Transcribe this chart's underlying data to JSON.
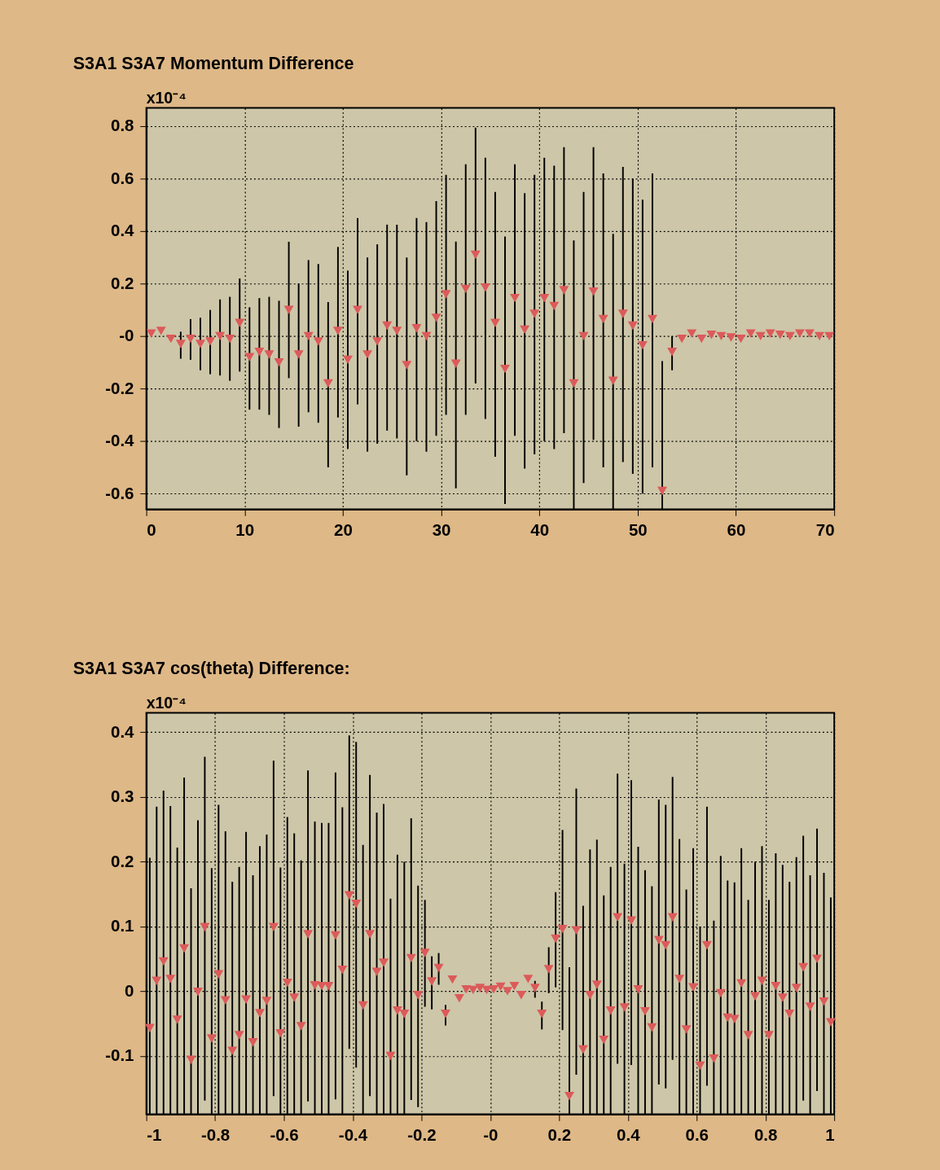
{
  "chart_data": [
    {
      "type": "scatter",
      "title": "S3A1 S3A7 Momentum Difference",
      "annotations": [
        "x10⁻⁴"
      ],
      "marker": "triangle",
      "grid": true,
      "color": "#dc5a5a",
      "x": [
        0.5,
        1.5,
        2.5,
        3.5,
        4.5,
        5.5,
        6.5,
        7.5,
        8.5,
        9.5,
        10.5,
        11.5,
        12.5,
        13.5,
        14.5,
        15.5,
        16.5,
        17.5,
        18.5,
        19.5,
        20.5,
        21.5,
        22.5,
        23.5,
        24.5,
        25.5,
        26.5,
        27.5,
        28.5,
        29.5,
        30.5,
        31.5,
        32.5,
        33.5,
        34.5,
        35.5,
        36.5,
        37.5,
        38.5,
        39.5,
        40.5,
        41.5,
        42.5,
        43.5,
        44.5,
        45.5,
        46.5,
        47.5,
        48.5,
        49.5,
        50.5,
        51.5,
        52.5,
        53.5,
        54.5,
        55.5,
        56.5,
        57.5,
        58.5,
        59.5,
        60.5,
        61.5,
        62.5,
        63.5,
        64.5,
        65.5,
        66.5,
        67.5,
        68.5,
        69.5
      ],
      "values": [
        0.01,
        0.02,
        -0.01,
        -0.03,
        -0.01,
        -0.03,
        -0.02,
        0.0,
        -0.01,
        0.05,
        -0.08,
        -0.06,
        -0.07,
        -0.1,
        0.1,
        -0.07,
        0.0,
        -0.02,
        -0.18,
        0.02,
        -0.09,
        0.1,
        -0.07,
        -0.02,
        0.04,
        0.02,
        -0.11,
        0.03,
        0.0,
        0.07,
        0.16,
        -0.105,
        0.18,
        0.31,
        0.185,
        0.05,
        -0.125,
        0.145,
        0.025,
        0.085,
        0.145,
        0.115,
        0.175,
        -0.18,
        0.0,
        0.17,
        0.065,
        -0.17,
        0.085,
        0.04,
        -0.035,
        0.065,
        -0.59,
        -0.06,
        -0.01,
        0.01,
        -0.01,
        0.005,
        0.0,
        -0.005,
        -0.01,
        0.01,
        0.0,
        0.01,
        0.005,
        0.0,
        0.01,
        0.01,
        0.0,
        0.0
      ],
      "errors": [
        null,
        null,
        null,
        [
          -0.086,
          0.017
        ],
        [
          -0.09,
          0.065
        ],
        [
          -0.13,
          0.07
        ],
        [
          -0.145,
          0.1
        ],
        [
          -0.15,
          0.14
        ],
        [
          -0.17,
          0.15
        ],
        [
          -0.135,
          0.22
        ],
        [
          -0.28,
          0.11
        ],
        [
          -0.28,
          0.145
        ],
        [
          -0.3,
          0.15
        ],
        [
          -0.35,
          0.135
        ],
        [
          -0.16,
          0.36
        ],
        [
          -0.345,
          0.2
        ],
        [
          -0.29,
          0.29
        ],
        [
          -0.33,
          0.275
        ],
        [
          -0.5,
          0.13
        ],
        [
          -0.31,
          0.34
        ],
        [
          -0.43,
          0.25
        ],
        [
          -0.26,
          0.45
        ],
        [
          -0.44,
          0.3
        ],
        [
          -0.41,
          0.35
        ],
        [
          -0.36,
          0.425
        ],
        [
          -0.39,
          0.425
        ],
        [
          -0.53,
          0.3
        ],
        [
          -0.4,
          0.45
        ],
        [
          -0.44,
          0.435
        ],
        [
          -0.38,
          0.515
        ],
        [
          -0.3,
          0.615
        ],
        [
          -0.58,
          0.36
        ],
        [
          -0.3,
          0.655
        ],
        [
          -0.18,
          0.795
        ],
        [
          -0.315,
          0.68
        ],
        [
          -0.46,
          0.55
        ],
        [
          -0.64,
          0.38
        ],
        [
          -0.38,
          0.655
        ],
        [
          -0.505,
          0.545
        ],
        [
          -0.45,
          0.615
        ],
        [
          -0.4,
          0.68
        ],
        [
          -0.43,
          0.65
        ],
        [
          -0.37,
          0.72
        ],
        [
          -0.66,
          0.365
        ],
        [
          -0.56,
          0.55
        ],
        [
          -0.395,
          0.72
        ],
        [
          -0.5,
          0.62
        ],
        [
          -0.66,
          0.39
        ],
        [
          -0.48,
          0.645
        ],
        [
          -0.525,
          0.6
        ],
        [
          -0.6,
          0.52
        ],
        [
          -0.5,
          0.62
        ],
        [
          -0.66,
          -0.095
        ],
        [
          -0.13,
          0.0
        ],
        null,
        null,
        null,
        null,
        null,
        null,
        null,
        null,
        null,
        null,
        null,
        null,
        null,
        null,
        null,
        null
      ],
      "xlim": [
        0,
        70
      ],
      "xticks": [
        0,
        10,
        20,
        30,
        40,
        50,
        60,
        70
      ],
      "ylim": [
        -0.66,
        0.87
      ],
      "yticks": [
        -0.6,
        -0.4,
        -0.2,
        {
          "value": 0,
          "label": "-0"
        },
        0.2,
        0.4,
        0.6,
        0.8
      ]
    },
    {
      "type": "scatter",
      "title": "S3A1 S3A7 cos(theta) Difference:",
      "annotations": [
        "x10⁻⁴"
      ],
      "marker": "triangle",
      "grid": true,
      "color": "#dc5a5a",
      "x": [
        -0.99,
        -0.97,
        -0.95,
        -0.93,
        -0.91,
        -0.89,
        -0.87,
        -0.85,
        -0.83,
        -0.81,
        -0.79,
        -0.77,
        -0.75,
        -0.73,
        -0.71,
        -0.69,
        -0.67,
        -0.65,
        -0.63,
        -0.61,
        -0.59,
        -0.57,
        -0.55,
        -0.53,
        -0.51,
        -0.49,
        -0.47,
        -0.45,
        -0.43,
        -0.41,
        -0.39,
        -0.37,
        -0.35,
        -0.33,
        -0.31,
        -0.29,
        -0.27,
        -0.25,
        -0.23,
        -0.21,
        -0.19,
        -0.17,
        -0.15,
        -0.13,
        -0.11,
        -0.09,
        -0.07,
        -0.05,
        -0.03,
        -0.01,
        0.01,
        0.03,
        0.05,
        0.07,
        0.09,
        0.11,
        0.13,
        0.15,
        0.17,
        0.19,
        0.21,
        0.23,
        0.25,
        0.27,
        0.29,
        0.31,
        0.33,
        0.35,
        0.37,
        0.39,
        0.41,
        0.43,
        0.45,
        0.47,
        0.49,
        0.51,
        0.53,
        0.55,
        0.57,
        0.59,
        0.61,
        0.63,
        0.65,
        0.67,
        0.69,
        0.71,
        0.73,
        0.75,
        0.77,
        0.79,
        0.81,
        0.83,
        0.85,
        0.87,
        0.89,
        0.91,
        0.93,
        0.95,
        0.97,
        0.99
      ],
      "values": [
        -0.057,
        0.016,
        0.046,
        0.019,
        -0.044,
        0.066,
        -0.106,
        -0.001,
        0.099,
        -0.073,
        0.026,
        -0.014,
        -0.092,
        -0.068,
        -0.013,
        -0.079,
        -0.034,
        -0.015,
        0.099,
        -0.065,
        0.013,
        -0.01,
        -0.054,
        0.088,
        0.009,
        0.008,
        0.008,
        0.086,
        0.033,
        0.148,
        0.135,
        -0.022,
        0.088,
        0.03,
        0.044,
        -0.1,
        -0.03,
        -0.035,
        0.051,
        -0.006,
        0.059,
        0.015,
        0.036,
        -0.035,
        0.018,
        -0.011,
        0.003,
        0.002,
        0.005,
        0.002,
        0.003,
        0.007,
        0.0,
        0.008,
        -0.006,
        0.019,
        0.005,
        -0.035,
        0.034,
        0.081,
        0.096,
        -0.162,
        0.094,
        -0.09,
        -0.006,
        0.01,
        -0.075,
        -0.03,
        0.114,
        -0.025,
        0.109,
        0.003,
        -0.031,
        -0.056,
        0.079,
        0.071,
        0.114,
        0.019,
        -0.059,
        0.006,
        -0.115,
        0.071,
        -0.104,
        -0.003,
        -0.041,
        -0.043,
        0.012,
        -0.068,
        -0.008,
        0.016,
        -0.068,
        0.008,
        -0.01,
        -0.035,
        0.005,
        0.037,
        -0.024,
        0.05,
        -0.016,
        -0.048
      ],
      "errors": [
        [
          -0.19,
          0.206
        ],
        [
          -0.19,
          0.285
        ],
        [
          -0.19,
          0.31
        ],
        [
          -0.19,
          0.286
        ],
        [
          -0.19,
          0.222
        ],
        [
          -0.19,
          0.33
        ],
        [
          -0.19,
          0.159
        ],
        [
          -0.19,
          0.264
        ],
        [
          -0.169,
          0.362
        ],
        [
          -0.19,
          0.19
        ],
        [
          -0.19,
          0.288
        ],
        [
          -0.19,
          0.247
        ],
        [
          -0.19,
          0.169
        ],
        [
          -0.19,
          0.192
        ],
        [
          -0.19,
          0.246
        ],
        [
          -0.19,
          0.179
        ],
        [
          -0.19,
          0.224
        ],
        [
          -0.19,
          0.242
        ],
        [
          -0.162,
          0.356
        ],
        [
          -0.19,
          0.191
        ],
        [
          -0.19,
          0.269
        ],
        [
          -0.19,
          0.244
        ],
        [
          -0.19,
          0.202
        ],
        [
          -0.17,
          0.341
        ],
        [
          -0.19,
          0.262
        ],
        [
          -0.19,
          0.26
        ],
        [
          -0.19,
          0.26
        ],
        [
          -0.167,
          0.338
        ],
        [
          -0.19,
          0.284
        ],
        [
          -0.089,
          0.395
        ],
        [
          -0.118,
          0.385
        ],
        [
          -0.19,
          0.226
        ],
        [
          -0.162,
          0.334
        ],
        [
          -0.19,
          0.276
        ],
        [
          -0.19,
          0.289
        ],
        [
          -0.19,
          0.143
        ],
        [
          -0.19,
          0.211
        ],
        [
          -0.19,
          0.2
        ],
        [
          -0.168,
          0.267
        ],
        [
          -0.179,
          0.163
        ],
        [
          -0.024,
          0.141
        ],
        [
          -0.028,
          0.054
        ],
        [
          0.01,
          0.059
        ],
        [
          -0.053,
          -0.021
        ],
        null,
        null,
        null,
        null,
        null,
        null,
        null,
        null,
        null,
        null,
        null,
        null,
        [
          -0.01,
          0.016
        ],
        [
          -0.059,
          -0.016
        ],
        [
          -0.003,
          0.068
        ],
        [
          0.006,
          0.153
        ],
        [
          -0.06,
          0.249
        ],
        [
          -0.19,
          0.037
        ],
        [
          -0.129,
          0.313
        ],
        [
          -0.19,
          0.132
        ],
        [
          -0.19,
          0.219
        ],
        [
          -0.19,
          0.234
        ],
        [
          -0.19,
          0.148
        ],
        [
          -0.19,
          0.192
        ],
        [
          -0.112,
          0.336
        ],
        [
          -0.19,
          0.197
        ],
        [
          -0.114,
          0.326
        ],
        [
          -0.19,
          0.223
        ],
        [
          -0.19,
          0.187
        ],
        [
          -0.19,
          0.162
        ],
        [
          -0.144,
          0.296
        ],
        [
          -0.15,
          0.288
        ],
        [
          -0.106,
          0.331
        ],
        [
          -0.19,
          0.235
        ],
        [
          -0.19,
          0.157
        ],
        [
          -0.19,
          0.221
        ],
        [
          -0.19,
          0.1
        ],
        [
          -0.146,
          0.285
        ],
        [
          -0.19,
          0.109
        ],
        [
          -0.19,
          0.209
        ],
        [
          -0.19,
          0.171
        ],
        [
          -0.19,
          0.168
        ],
        [
          -0.19,
          0.221
        ],
        [
          -0.19,
          0.141
        ],
        [
          -0.19,
          0.2
        ],
        [
          -0.19,
          0.224
        ],
        [
          -0.19,
          0.141
        ],
        [
          -0.19,
          0.213
        ],
        [
          -0.19,
          0.195
        ],
        [
          -0.19,
          0.169
        ],
        [
          -0.19,
          0.207
        ],
        [
          -0.169,
          0.24
        ],
        [
          -0.19,
          0.179
        ],
        [
          -0.154,
          0.251
        ],
        [
          -0.19,
          0.183
        ],
        [
          -0.19,
          0.145
        ]
      ],
      "xlim": [
        -1,
        1
      ],
      "xticks": [
        -1,
        -0.8,
        -0.6,
        -0.4,
        -0.2,
        {
          "value": 0,
          "label": "-0"
        },
        0.2,
        0.4,
        0.6,
        0.8,
        1
      ],
      "ylim": [
        -0.19,
        0.43
      ],
      "yticks": [
        -0.1,
        0,
        0.1,
        0.2,
        0.3,
        0.4
      ]
    }
  ]
}
